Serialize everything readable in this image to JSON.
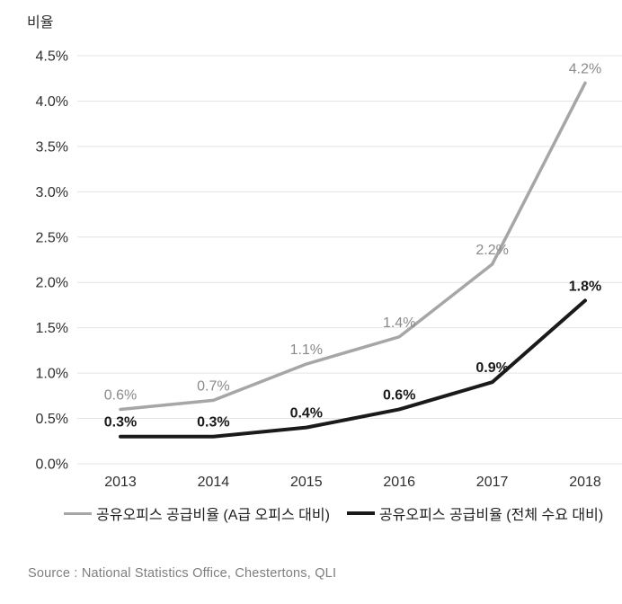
{
  "chart_data": {
    "type": "line",
    "title": "",
    "ylabel": "비율",
    "xlabel": "",
    "categories": [
      "2013",
      "2014",
      "2015",
      "2016",
      "2017",
      "2018"
    ],
    "ylim": [
      0,
      4.5
    ],
    "grid": "horizontal",
    "legend_position": "bottom",
    "gridline_color": "#e4e4e4",
    "tick_color": "#2e2e2e",
    "yticks": [
      {
        "value": 4.5,
        "label": "4.5%"
      },
      {
        "value": 4.0,
        "label": "4.0%"
      },
      {
        "value": 3.5,
        "label": "3.5%"
      },
      {
        "value": 3.0,
        "label": "3.0%"
      },
      {
        "value": 2.5,
        "label": "2.5%"
      },
      {
        "value": 2.0,
        "label": "2.0%"
      },
      {
        "value": 1.5,
        "label": "1.5%"
      },
      {
        "value": 1.0,
        "label": "1.0%"
      },
      {
        "value": 0.5,
        "label": "0.5%"
      },
      {
        "value": 0.0,
        "label": "0.0%"
      }
    ],
    "series": [
      {
        "name": "공유오피스 공급비율 (A급 오피스 대비)",
        "values": [
          0.6,
          0.7,
          1.1,
          1.4,
          2.2,
          4.2
        ],
        "labels": [
          "0.6%",
          "0.7%",
          "1.1%",
          "1.4%",
          "2.2%",
          "4.2%"
        ],
        "color": "#a6a6a6",
        "label_color": "#8a8a8a"
      },
      {
        "name": "공유오피스 공급비율 (전체 수요 대비)",
        "values": [
          0.3,
          0.3,
          0.4,
          0.6,
          0.9,
          1.8
        ],
        "labels": [
          "0.3%",
          "0.3%",
          "0.4%",
          "0.6%",
          "0.9%",
          "1.8%"
        ],
        "color": "#1a1a1a",
        "label_color": "#1a1a1a"
      }
    ]
  },
  "source": "Source : National Statistics Office, Chestertons, QLI"
}
